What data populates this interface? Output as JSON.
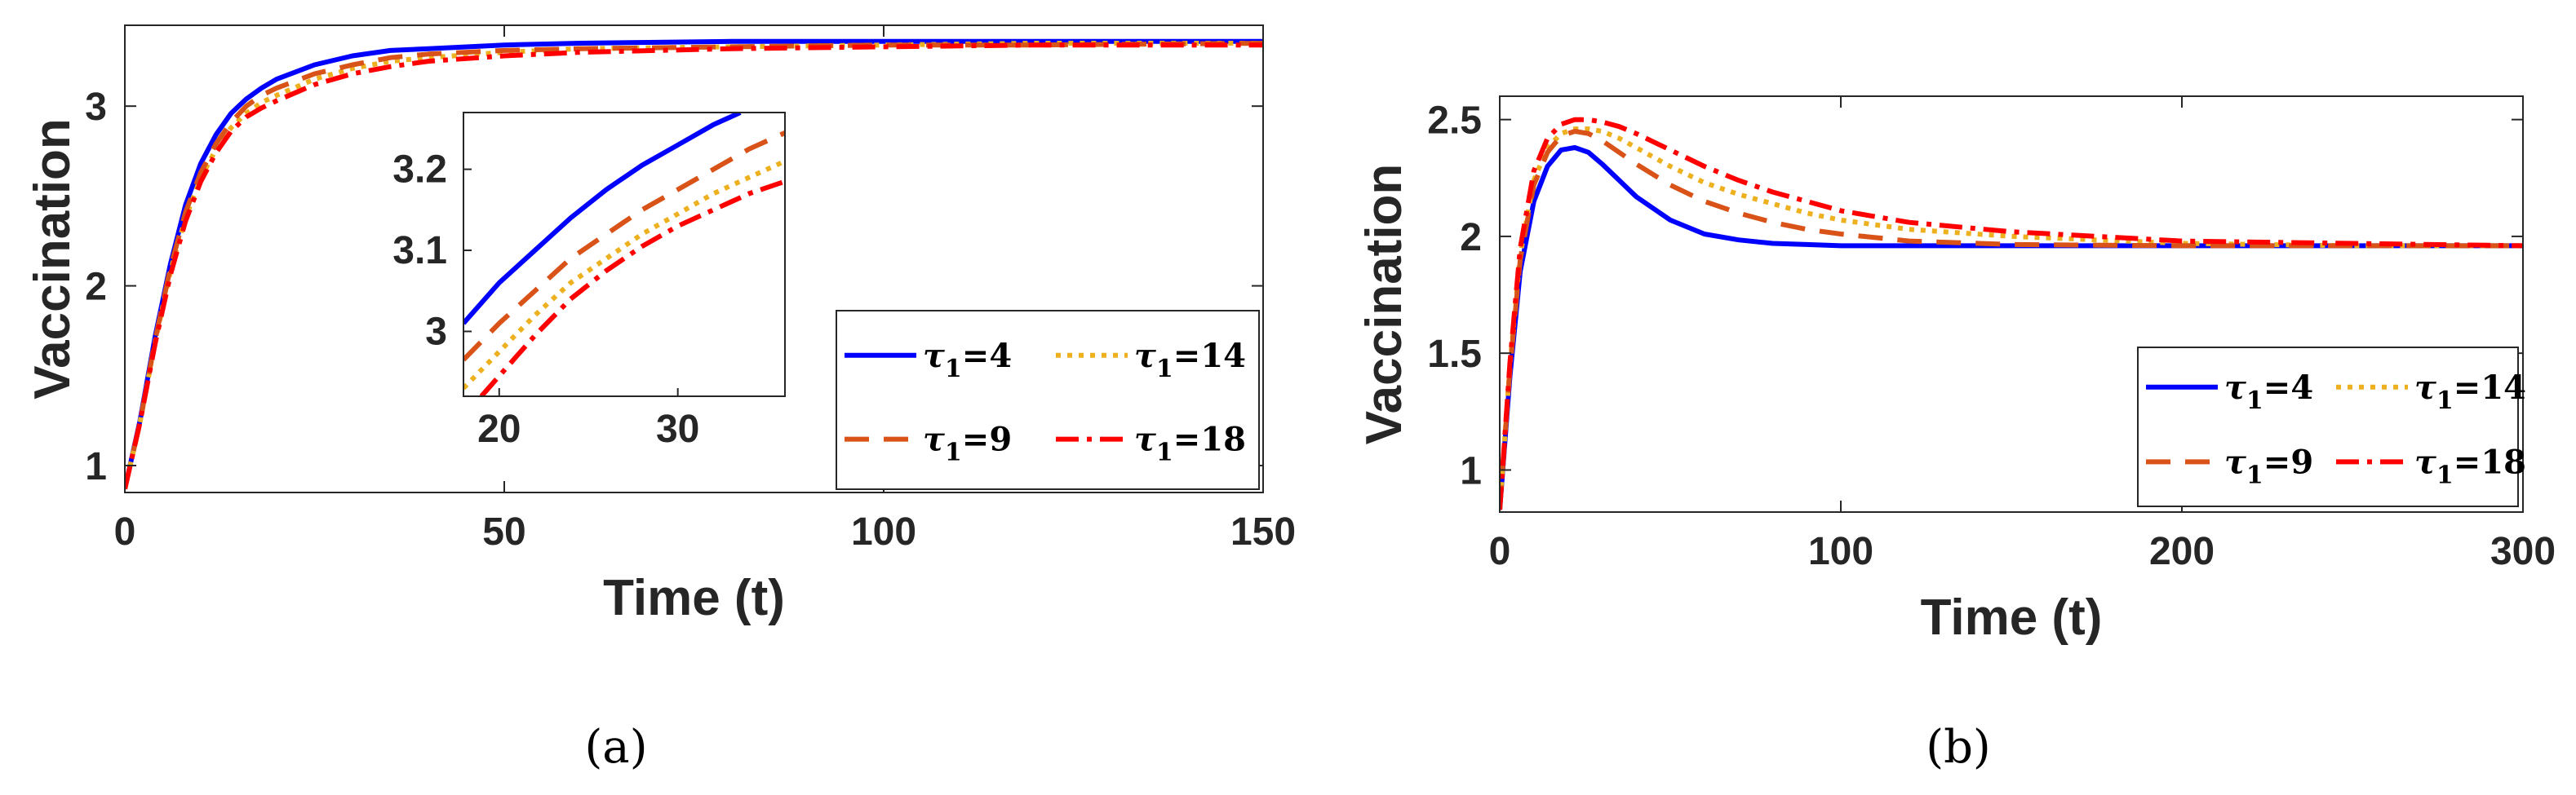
{
  "chart_data": [
    {
      "type": "line",
      "caption": "(a)",
      "xlabel": "Time (t)",
      "ylabel": "Vaccination",
      "xlim": [
        0,
        150
      ],
      "ylim": [
        0.85,
        3.45
      ],
      "xticks": [
        0,
        50,
        100,
        150
      ],
      "yticks": [
        1,
        2,
        3
      ],
      "grid": false,
      "legend": {
        "placement": "bottom-right",
        "columns": 2
      },
      "series": [
        {
          "name": "τ₁=4",
          "name_base": "τ",
          "name_sub": "1",
          "name_value": "=4",
          "color": "#0000ff",
          "dash": "solid",
          "x": [
            0,
            2,
            4,
            6,
            8,
            10,
            12,
            14,
            16,
            18,
            20,
            25,
            30,
            35,
            40,
            50,
            60,
            80,
            100,
            120,
            150
          ],
          "y": [
            0.87,
            1.25,
            1.72,
            2.12,
            2.45,
            2.68,
            2.84,
            2.96,
            3.04,
            3.1,
            3.15,
            3.23,
            3.28,
            3.31,
            3.32,
            3.34,
            3.35,
            3.36,
            3.36,
            3.36,
            3.36
          ]
        },
        {
          "name": "τ₁=14",
          "name_base": "τ",
          "name_sub": "1",
          "name_value": "=14",
          "color": "#edb120",
          "dash": "dotted",
          "x": [
            0,
            2,
            4,
            6,
            8,
            10,
            12,
            14,
            16,
            18,
            20,
            25,
            30,
            35,
            40,
            50,
            60,
            80,
            100,
            120,
            150
          ],
          "y": [
            0.87,
            1.24,
            1.69,
            2.08,
            2.38,
            2.6,
            2.76,
            2.88,
            2.96,
            3.02,
            3.06,
            3.15,
            3.21,
            3.25,
            3.27,
            3.3,
            3.32,
            3.33,
            3.34,
            3.35,
            3.35
          ]
        },
        {
          "name": "τ₁=9",
          "name_base": "τ",
          "name_sub": "1",
          "name_value": "=9",
          "color": "#d95319",
          "dash": "dashed",
          "x": [
            0,
            2,
            4,
            6,
            8,
            10,
            12,
            14,
            16,
            18,
            20,
            25,
            30,
            35,
            40,
            50,
            60,
            80,
            100,
            120,
            150
          ],
          "y": [
            0.87,
            1.24,
            1.7,
            2.1,
            2.41,
            2.63,
            2.79,
            2.91,
            3.0,
            3.06,
            3.1,
            3.18,
            3.23,
            3.27,
            3.29,
            3.31,
            3.32,
            3.33,
            3.34,
            3.34,
            3.35
          ]
        },
        {
          "name": "τ₁=18",
          "name_base": "τ",
          "name_sub": "1",
          "name_value": "=18",
          "color": "#ff0000",
          "dash": "dashdot",
          "x": [
            0,
            2,
            4,
            6,
            8,
            10,
            12,
            14,
            16,
            18,
            20,
            25,
            30,
            35,
            40,
            50,
            60,
            80,
            100,
            120,
            150
          ],
          "y": [
            0.87,
            1.24,
            1.68,
            2.06,
            2.36,
            2.58,
            2.74,
            2.86,
            2.94,
            2.99,
            3.03,
            3.12,
            3.18,
            3.22,
            3.25,
            3.28,
            3.3,
            3.32,
            3.33,
            3.34,
            3.34
          ]
        }
      ],
      "inset": {
        "xlim": [
          18,
          36
        ],
        "ylim": [
          2.92,
          3.27
        ],
        "xticks": [
          20,
          30
        ],
        "yticks": [
          3,
          3.1,
          3.2
        ],
        "series": [
          {
            "color": "#0000ff",
            "dash": "solid",
            "x": [
              18,
              20,
              22,
              24,
              26,
              28,
              30,
              32,
              33.5
            ],
            "y": [
              3.01,
              3.06,
              3.1,
              3.14,
              3.175,
              3.205,
              3.23,
              3.255,
              3.27
            ]
          },
          {
            "color": "#d95319",
            "dash": "dashed",
            "x": [
              18,
              20,
              22,
              24,
              26,
              28,
              30,
              32,
              34,
              36
            ],
            "y": [
              2.965,
              3.01,
              3.05,
              3.09,
              3.12,
              3.15,
              3.175,
              3.2,
              3.225,
              3.245
            ]
          },
          {
            "color": "#edb120",
            "dash": "dotted",
            "x": [
              18,
              20,
              22,
              24,
              26,
              28,
              30,
              32,
              34,
              36
            ],
            "y": [
              2.93,
              2.975,
              3.02,
              3.06,
              3.09,
              3.12,
              3.145,
              3.17,
              3.19,
              3.21
            ]
          },
          {
            "color": "#ff0000",
            "dash": "dashdot",
            "x": [
              19,
              20,
              22,
              24,
              26,
              28,
              30,
              32,
              34,
              36
            ],
            "y": [
              2.92,
              2.945,
              2.995,
              3.04,
              3.075,
              3.105,
              3.13,
              3.15,
              3.17,
              3.185
            ]
          }
        ]
      }
    },
    {
      "type": "line",
      "caption": "(b)",
      "xlabel": "Time (t)",
      "ylabel": "Vaccination",
      "xlim": [
        0,
        300
      ],
      "ylim": [
        0.82,
        2.6
      ],
      "xticks": [
        0,
        100,
        200,
        300
      ],
      "yticks": [
        1,
        1.5,
        2,
        2.5
      ],
      "ytick_labels": [
        "1",
        "1.5",
        "2",
        "2.5"
      ],
      "grid": false,
      "legend": {
        "placement": "bottom-right",
        "columns": 2
      },
      "series": [
        {
          "name": "τ₁=4",
          "name_base": "τ",
          "name_sub": "1",
          "name_value": "=4",
          "color": "#0000ff",
          "dash": "solid",
          "x": [
            0,
            3,
            6,
            10,
            14,
            18,
            22,
            26,
            30,
            35,
            40,
            50,
            60,
            70,
            80,
            90,
            100,
            120,
            150,
            200,
            250,
            300
          ],
          "y": [
            0.83,
            1.4,
            1.85,
            2.15,
            2.3,
            2.37,
            2.38,
            2.36,
            2.31,
            2.24,
            2.17,
            2.07,
            2.01,
            1.985,
            1.97,
            1.965,
            1.96,
            1.96,
            1.96,
            1.96,
            1.96,
            1.96
          ]
        },
        {
          "name": "τ₁=14",
          "name_base": "τ",
          "name_sub": "1",
          "name_value": "=14",
          "color": "#edb120",
          "dash": "dotted",
          "x": [
            0,
            3,
            6,
            10,
            14,
            18,
            22,
            26,
            30,
            35,
            40,
            50,
            60,
            70,
            80,
            90,
            100,
            120,
            150,
            200,
            250,
            300
          ],
          "y": [
            0.83,
            1.45,
            1.92,
            2.24,
            2.38,
            2.44,
            2.46,
            2.46,
            2.45,
            2.42,
            2.38,
            2.3,
            2.23,
            2.18,
            2.14,
            2.1,
            2.07,
            2.03,
            2.0,
            1.97,
            1.96,
            1.96
          ]
        },
        {
          "name": "τ₁=9",
          "name_base": "τ",
          "name_sub": "1",
          "name_value": "=9",
          "color": "#d95319",
          "dash": "dashed",
          "x": [
            0,
            3,
            6,
            10,
            14,
            18,
            22,
            26,
            30,
            35,
            40,
            50,
            60,
            70,
            80,
            90,
            100,
            120,
            150,
            200,
            250,
            300
          ],
          "y": [
            0.83,
            1.43,
            1.9,
            2.22,
            2.36,
            2.43,
            2.45,
            2.44,
            2.41,
            2.36,
            2.31,
            2.22,
            2.15,
            2.1,
            2.06,
            2.03,
            2.01,
            1.98,
            1.965,
            1.96,
            1.96,
            1.96
          ]
        },
        {
          "name": "τ₁=18",
          "name_base": "τ",
          "name_sub": "1",
          "name_value": "=18",
          "color": "#ff0000",
          "dash": "dashdot",
          "x": [
            0,
            3,
            6,
            10,
            14,
            18,
            22,
            26,
            30,
            35,
            40,
            50,
            60,
            70,
            80,
            90,
            100,
            120,
            150,
            200,
            250,
            300
          ],
          "y": [
            0.83,
            1.46,
            1.95,
            2.28,
            2.42,
            2.48,
            2.5,
            2.5,
            2.49,
            2.47,
            2.44,
            2.37,
            2.3,
            2.24,
            2.19,
            2.15,
            2.11,
            2.06,
            2.02,
            1.98,
            1.97,
            1.96
          ]
        }
      ]
    }
  ]
}
